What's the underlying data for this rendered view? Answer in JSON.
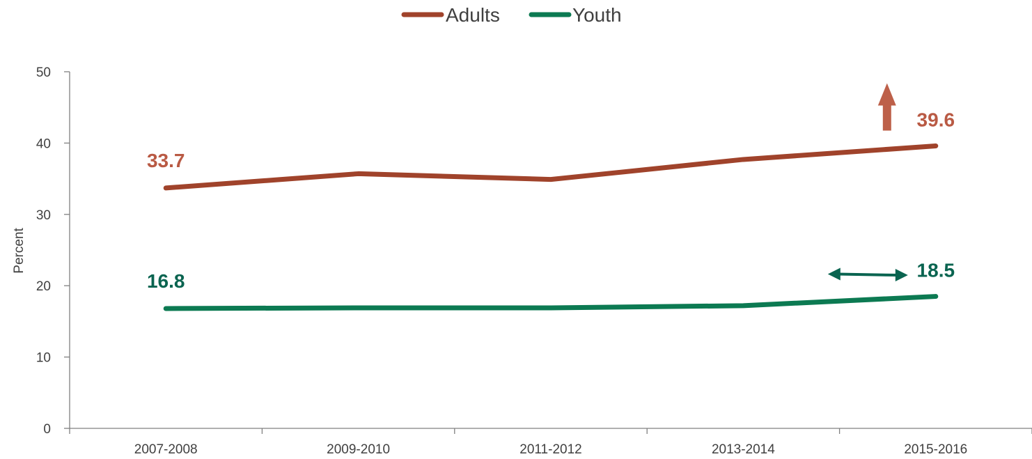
{
  "chart_data": {
    "type": "line",
    "title": "",
    "xlabel": "",
    "ylabel": "Percent",
    "categories": [
      "2007-2008",
      "2009-2010",
      "2011-2012",
      "2013-2014",
      "2015-2016"
    ],
    "ylim": [
      0,
      50
    ],
    "yticks": [
      "0",
      "10",
      "20",
      "30",
      "40",
      "50"
    ],
    "grid": false,
    "legend_position": "top-center",
    "series": [
      {
        "name": "Adults",
        "color": "#A0432B",
        "values": [
          33.7,
          35.7,
          34.9,
          37.7,
          39.6
        ],
        "labels": [
          {
            "index": 0,
            "text": "33.7"
          },
          {
            "index": 4,
            "text": "39.6"
          }
        ],
        "trend": "increasing",
        "trend_icon": "up-arrow-icon"
      },
      {
        "name": "Youth",
        "color": "#0C7A52",
        "values": [
          16.8,
          16.9,
          16.9,
          17.2,
          18.5
        ],
        "labels": [
          {
            "index": 0,
            "text": "16.8"
          },
          {
            "index": 4,
            "text": "18.5"
          }
        ],
        "trend": "no change",
        "trend_icon": "double-arrow-icon"
      }
    ]
  },
  "colors": {
    "adults_label": "#B95A44",
    "youth_label": "#0A6450",
    "adults_arrow": "#BD6049",
    "youth_arrow": "#0A6450",
    "axis": "#808080",
    "text": "#404040"
  }
}
